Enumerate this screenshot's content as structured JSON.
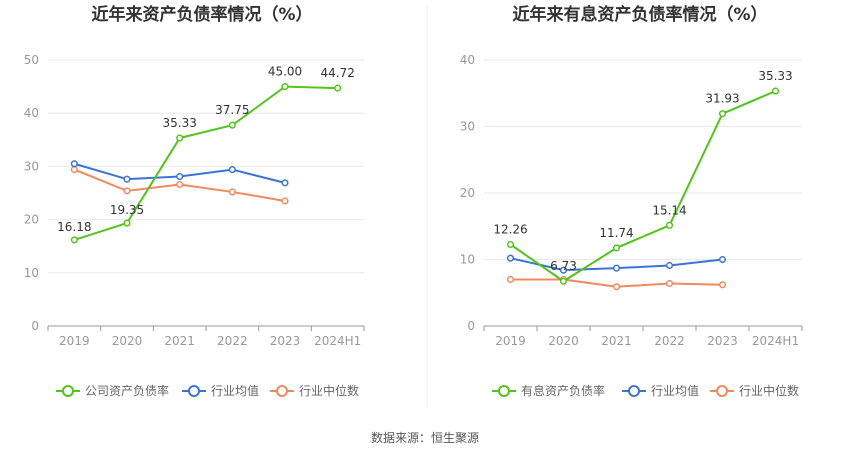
{
  "source_text": "数据来源：恒生聚源",
  "chart_data": [
    {
      "type": "line",
      "title": "近年来资产负债率情况（%）",
      "categories": [
        "2019",
        "2020",
        "2021",
        "2022",
        "2023",
        "2024H1"
      ],
      "ylim": [
        0,
        50
      ],
      "yticks": [
        0,
        10,
        20,
        30,
        40,
        50
      ],
      "grid": true,
      "legend_position": "bottom",
      "series": [
        {
          "name": "公司资产负债率",
          "color": "#52c41a",
          "values": [
            16.18,
            19.35,
            35.33,
            37.75,
            45.0,
            44.72
          ],
          "labels": [
            "16.18",
            "19.35",
            "35.33",
            "37.75",
            "45.00",
            "44.72"
          ]
        },
        {
          "name": "行业均值",
          "color": "#3a73d9",
          "values": [
            30.5,
            27.6,
            28.1,
            29.4,
            26.9,
            null
          ]
        },
        {
          "name": "行业中位数",
          "color": "#f08a5d",
          "values": [
            29.4,
            25.4,
            26.6,
            25.2,
            23.5,
            null
          ]
        }
      ]
    },
    {
      "type": "line",
      "title": "近年来有息资产负债率情况（%）",
      "categories": [
        "2019",
        "2020",
        "2021",
        "2022",
        "2023",
        "2024H1"
      ],
      "ylim": [
        0,
        40
      ],
      "yticks": [
        0,
        10,
        20,
        30,
        40
      ],
      "grid": true,
      "legend_position": "bottom",
      "series": [
        {
          "name": "有息资产负债率",
          "color": "#52c41a",
          "values": [
            12.26,
            6.73,
            11.74,
            15.14,
            31.93,
            35.33
          ],
          "labels": [
            "12.26",
            "6.73",
            "11.74",
            "15.14",
            "31.93",
            "35.33"
          ]
        },
        {
          "name": "行业均值",
          "color": "#3a73d9",
          "values": [
            10.2,
            8.4,
            8.7,
            9.1,
            10.0,
            null
          ]
        },
        {
          "name": "行业中位数",
          "color": "#f08a5d",
          "values": [
            7.0,
            7.0,
            5.9,
            6.4,
            6.2,
            null
          ]
        }
      ]
    }
  ]
}
